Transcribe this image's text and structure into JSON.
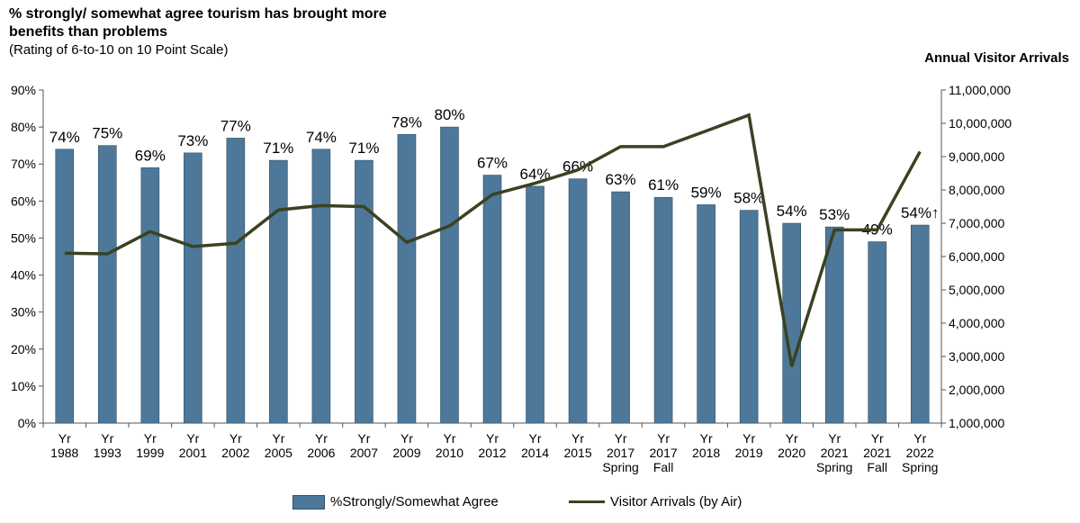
{
  "chart_data": {
    "type": "bar",
    "title": "% strongly/ somewhat agree tourism has brought more benefits than problems",
    "subtitle": "(Rating of 6-to-10 on 10 Point Scale)",
    "y2label": "Annual Visitor Arrivals",
    "categories": [
      [
        "Yr",
        "1988"
      ],
      [
        "Yr",
        "1993"
      ],
      [
        "Yr",
        "1999"
      ],
      [
        "Yr",
        "2001"
      ],
      [
        "Yr",
        "2002"
      ],
      [
        "Yr",
        "2005"
      ],
      [
        "Yr",
        "2006"
      ],
      [
        "Yr",
        "2007"
      ],
      [
        "Yr",
        "2009"
      ],
      [
        "Yr",
        "2010"
      ],
      [
        "Yr",
        "2012"
      ],
      [
        "Yr",
        "2014"
      ],
      [
        "Yr",
        "2015"
      ],
      [
        "Yr",
        "2017",
        "Spring"
      ],
      [
        "Yr",
        "2017",
        "Fall"
      ],
      [
        "Yr",
        "2018"
      ],
      [
        "Yr",
        "2019"
      ],
      [
        "Yr",
        "2020"
      ],
      [
        "Yr",
        "2021",
        "Spring"
      ],
      [
        "Yr",
        "2021",
        "Fall"
      ],
      [
        "Yr",
        "2022",
        "Spring"
      ]
    ],
    "series": [
      {
        "name": "%Strongly/Somewhat Agree",
        "type": "bar",
        "axis": "left",
        "color": "#4e7899",
        "values": [
          74,
          75,
          69,
          73,
          77,
          71,
          74,
          71,
          78,
          80,
          67,
          64,
          66,
          62.5,
          61,
          59,
          57.5,
          54,
          53,
          49,
          53.5
        ],
        "labels": [
          "74%",
          "75%",
          "69%",
          "73%",
          "77%",
          "71%",
          "74%",
          "71%",
          "78%",
          "80%",
          "67%",
          "64%",
          "66%",
          "63%",
          "61%",
          "59%",
          "58%",
          "54%",
          "53%",
          "49%",
          "54%↑"
        ]
      },
      {
        "name": "Visitor Arrivals (by Air)",
        "type": "line",
        "axis": "right",
        "color": "#3a4221",
        "values": [
          6100000,
          6080000,
          6750000,
          6300000,
          6400000,
          7400000,
          7530000,
          7500000,
          6430000,
          6920000,
          7860000,
          8200000,
          8600000,
          9300000,
          9300000,
          9770000,
          10250000,
          2700000,
          6800000,
          6800000,
          9150000
        ]
      }
    ],
    "ylim": [
      0,
      90
    ],
    "yticks": [
      "0%",
      "10%",
      "20%",
      "30%",
      "40%",
      "50%",
      "60%",
      "70%",
      "80%",
      "90%"
    ],
    "y2lim": [
      1000000,
      11000000
    ],
    "y2ticks": [
      "1,000,000",
      "2,000,000",
      "3,000,000",
      "4,000,000",
      "5,000,000",
      "6,000,000",
      "7,000,000",
      "8,000,000",
      "9,000,000",
      "10,000,000",
      "11,000,000"
    ],
    "grid": false,
    "legend_position": "bottom"
  }
}
